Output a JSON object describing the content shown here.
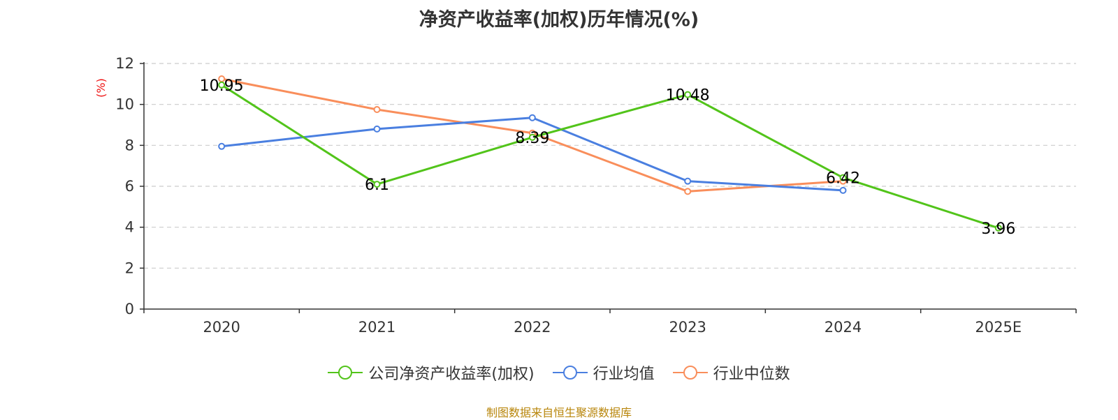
{
  "colors": {
    "company": "#52c41a",
    "industry_avg": "#4a7fe0",
    "industry_median": "#f98e5b",
    "ylabel": "#ee1111",
    "source": "#b8860b",
    "grid": "#cccccc",
    "axis": "#333333"
  },
  "chart_data": {
    "type": "line",
    "title": "净资产收益率(加权)历年情况(%)",
    "xlabel": "",
    "ylabel": "(%)",
    "categories": [
      "2020",
      "2021",
      "2022",
      "2023",
      "2024",
      "2025E"
    ],
    "ylim": [
      0,
      12
    ],
    "yticks": [
      0,
      2,
      4,
      6,
      8,
      10,
      12
    ],
    "grid": true,
    "legend_position": "bottom-center",
    "series": [
      {
        "key": "company",
        "name": "公司净资产收益率(加权)",
        "values": [
          10.95,
          6.1,
          8.39,
          10.48,
          6.42,
          3.96
        ],
        "labels": [
          "10.95",
          "6.1",
          "8.39",
          "10.48",
          "6.42",
          "3.96"
        ],
        "show_labels": true
      },
      {
        "key": "industry_avg",
        "name": "行业均值",
        "values": [
          7.95,
          8.8,
          9.35,
          6.25,
          5.8,
          null
        ],
        "show_labels": false
      },
      {
        "key": "industry_median",
        "name": "行业中位数",
        "values": [
          11.25,
          9.75,
          8.6,
          5.75,
          6.25,
          null
        ],
        "show_labels": false
      }
    ]
  },
  "source_note": "制图数据来自恒生聚源数据库"
}
